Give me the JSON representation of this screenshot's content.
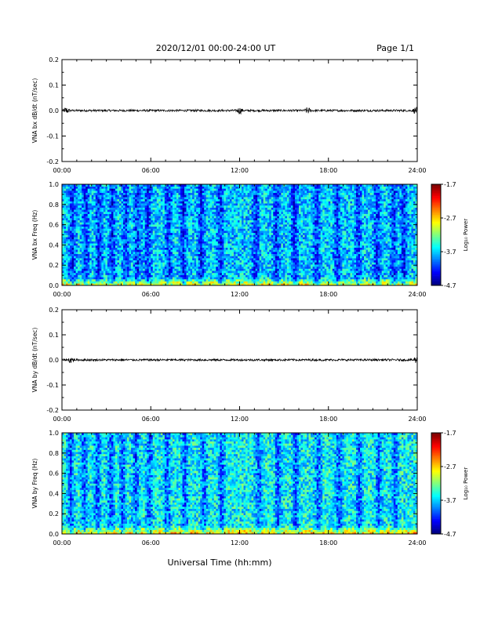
{
  "header": {
    "date_range": "2020/12/01  00:00-24:00 UT",
    "page": "Page 1/1"
  },
  "footer": {
    "xlabel": "Universal Time (hh:mm)"
  },
  "colors": {
    "trace": "#000000",
    "frame": "#000000",
    "background": "#ffffff"
  },
  "chart_data": [
    {
      "type": "line",
      "ylabel": "VNA bx dB/dt (nT/sec)",
      "xlim": [
        0,
        24
      ],
      "ylim": [
        -0.2,
        0.2
      ],
      "x_tick_labels": [
        "00:00",
        "06:00",
        "12:00",
        "18:00",
        "24:00"
      ],
      "y_tick_labels": [
        "-0.2",
        "-0.1",
        "0.0",
        "0.1",
        "0.2"
      ],
      "y_tick_values": [
        -0.2,
        -0.1,
        0.0,
        0.1,
        0.2
      ],
      "series": [
        {
          "baseline": 0.0,
          "typical_amplitude": 0.004,
          "spikes_at_hours": [
            0.3,
            12.0,
            16.6,
            23.9
          ]
        }
      ]
    },
    {
      "type": "heatmap",
      "ylabel": "VNA bx Freq (Hz)",
      "xlim": [
        0,
        24
      ],
      "ylim": [
        0.0,
        1.0
      ],
      "x_tick_labels": [
        "00:00",
        "06:00",
        "12:00",
        "18:00",
        "24:00"
      ],
      "y_tick_labels": [
        "0.0",
        "0.2",
        "0.4",
        "0.6",
        "0.8",
        "1.0"
      ],
      "y_tick_values": [
        0.0,
        0.2,
        0.4,
        0.6,
        0.8,
        1.0
      ],
      "colorbar": {
        "label": "Log₁₀ Power",
        "range": [
          -4.7,
          -1.7
        ],
        "tick_labels": [
          "-1.7",
          "-2.7",
          "-3.7",
          "-4.7"
        ],
        "tick_values": [
          -1.7,
          -2.7,
          -3.7,
          -4.7
        ]
      },
      "dark_stripe_hours": [
        0.7,
        1.6,
        2.5,
        3.4,
        4.3,
        5.1,
        5.8,
        7.2,
        8.2,
        9.4,
        10.7,
        13.1,
        14.5,
        15.7,
        17.2,
        18.6,
        20.0,
        21.3,
        22.4,
        23.1
      ]
    },
    {
      "type": "line",
      "ylabel": "VNA by dB/dt (nT/sec)",
      "xlim": [
        0,
        24
      ],
      "ylim": [
        -0.2,
        0.2
      ],
      "x_tick_labels": [
        "00:00",
        "06:00",
        "12:00",
        "18:00",
        "24:00"
      ],
      "y_tick_labels": [
        "-0.2",
        "-0.1",
        "0.0",
        "0.1",
        "0.2"
      ],
      "y_tick_values": [
        -0.2,
        -0.1,
        0.0,
        0.1,
        0.2
      ],
      "series": [
        {
          "baseline": 0.0,
          "typical_amplitude": 0.004,
          "spikes_at_hours": [
            0.6,
            23.9
          ]
        }
      ]
    },
    {
      "type": "heatmap",
      "ylabel": "VNA by Freq (Hz)",
      "xlim": [
        0,
        24
      ],
      "ylim": [
        0.0,
        1.0
      ],
      "x_tick_labels": [
        "00:00",
        "06:00",
        "12:00",
        "18:00",
        "24:00"
      ],
      "y_tick_labels": [
        "0.0",
        "0.2",
        "0.4",
        "0.6",
        "0.8",
        "1.0"
      ],
      "y_tick_values": [
        0.0,
        0.2,
        0.4,
        0.6,
        0.8,
        1.0
      ],
      "colorbar": {
        "label": "Log₁₀ Power",
        "range": [
          -4.7,
          -1.7
        ],
        "tick_labels": [
          "-1.7",
          "-2.7",
          "-3.7",
          "-4.7"
        ],
        "tick_values": [
          -1.7,
          -2.7,
          -3.7,
          -4.7
        ]
      },
      "dark_stripe_hours": [
        0.6,
        1.5,
        2.4,
        3.3,
        4.1,
        5.0,
        5.9,
        7.1,
        8.3,
        9.6,
        10.8,
        13.3,
        14.6,
        15.8,
        17.3,
        18.7,
        20.1,
        21.4,
        22.5
      ]
    }
  ]
}
